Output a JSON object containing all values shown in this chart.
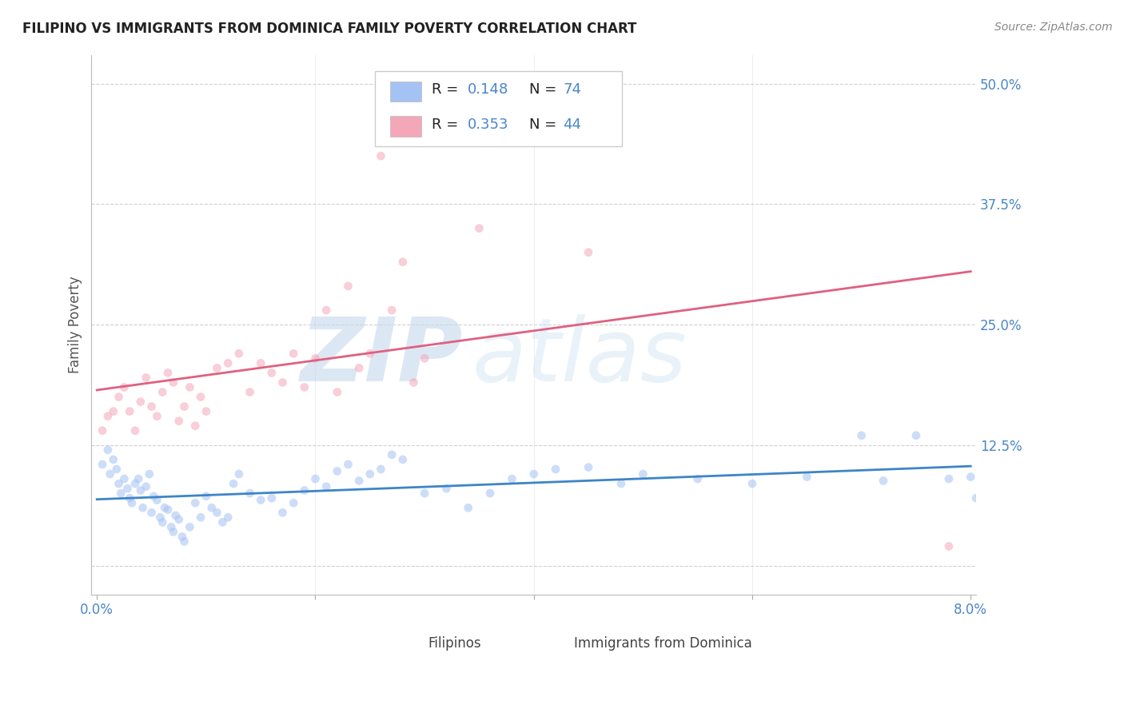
{
  "title": "FILIPINO VS IMMIGRANTS FROM DOMINICA FAMILY POVERTY CORRELATION CHART",
  "source": "Source: ZipAtlas.com",
  "ylabel": "Family Poverty",
  "xlim": [
    0.0,
    8.0
  ],
  "ylim": [
    -3.0,
    53.0
  ],
  "yticks": [
    0,
    12.5,
    25.0,
    37.5,
    50.0
  ],
  "ytick_labels": [
    "",
    "12.5%",
    "25.0%",
    "37.5%",
    "50.0%"
  ],
  "series": [
    {
      "name": "Filipinos",
      "R": 0.148,
      "N": 74,
      "color": "#a4c2f4",
      "line_color": "#3d85c8",
      "x": [
        0.05,
        0.1,
        0.12,
        0.15,
        0.18,
        0.2,
        0.22,
        0.25,
        0.28,
        0.3,
        0.32,
        0.35,
        0.38,
        0.4,
        0.42,
        0.45,
        0.48,
        0.5,
        0.52,
        0.55,
        0.58,
        0.6,
        0.62,
        0.65,
        0.68,
        0.7,
        0.72,
        0.75,
        0.78,
        0.8,
        0.85,
        0.9,
        0.95,
        1.0,
        1.05,
        1.1,
        1.15,
        1.2,
        1.25,
        1.3,
        1.4,
        1.5,
        1.6,
        1.7,
        1.8,
        1.9,
        2.0,
        2.1,
        2.2,
        2.3,
        2.4,
        2.5,
        2.6,
        2.7,
        2.8,
        3.0,
        3.2,
        3.4,
        3.6,
        3.8,
        4.0,
        4.2,
        4.5,
        4.8,
        5.0,
        5.5,
        6.0,
        6.5,
        7.0,
        7.2,
        7.5,
        7.8,
        8.0,
        8.05
      ],
      "y": [
        10.5,
        12.0,
        9.5,
        11.0,
        10.0,
        8.5,
        7.5,
        9.0,
        8.0,
        7.0,
        6.5,
        8.5,
        9.0,
        7.8,
        6.0,
        8.2,
        9.5,
        5.5,
        7.2,
        6.8,
        5.0,
        4.5,
        6.0,
        5.8,
        4.0,
        3.5,
        5.2,
        4.8,
        3.0,
        2.5,
        4.0,
        6.5,
        5.0,
        7.2,
        6.0,
        5.5,
        4.5,
        5.0,
        8.5,
        9.5,
        7.5,
        6.8,
        7.0,
        5.5,
        6.5,
        7.8,
        9.0,
        8.2,
        9.8,
        10.5,
        8.8,
        9.5,
        10.0,
        11.5,
        11.0,
        7.5,
        8.0,
        6.0,
        7.5,
        9.0,
        9.5,
        10.0,
        10.2,
        8.5,
        9.5,
        9.0,
        8.5,
        9.2,
        13.5,
        8.8,
        13.5,
        9.0,
        9.2,
        7.0
      ]
    },
    {
      "name": "Immigrants from Dominica",
      "R": 0.353,
      "N": 44,
      "color": "#f4a7b9",
      "line_color": "#e06080",
      "x": [
        0.05,
        0.1,
        0.15,
        0.2,
        0.25,
        0.3,
        0.35,
        0.4,
        0.45,
        0.5,
        0.55,
        0.6,
        0.65,
        0.7,
        0.75,
        0.8,
        0.85,
        0.9,
        0.95,
        1.0,
        1.1,
        1.2,
        1.3,
        1.4,
        1.5,
        1.6,
        1.7,
        1.8,
        1.9,
        2.0,
        2.1,
        2.2,
        2.3,
        2.4,
        2.5,
        2.6,
        2.7,
        2.8,
        2.9,
        3.0,
        3.5,
        4.0,
        4.5,
        7.8
      ],
      "y": [
        14.0,
        15.5,
        16.0,
        17.5,
        18.5,
        16.0,
        14.0,
        17.0,
        19.5,
        16.5,
        15.5,
        18.0,
        20.0,
        19.0,
        15.0,
        16.5,
        18.5,
        14.5,
        17.5,
        16.0,
        20.5,
        21.0,
        22.0,
        18.0,
        21.0,
        20.0,
        19.0,
        22.0,
        18.5,
        21.5,
        26.5,
        18.0,
        29.0,
        20.5,
        22.0,
        42.5,
        26.5,
        31.5,
        19.0,
        21.5,
        35.0,
        46.0,
        32.5,
        2.0
      ]
    }
  ],
  "background_color": "#ffffff",
  "grid_color": "#cccccc",
  "watermark_zip": "ZIP",
  "watermark_atlas": "atlas",
  "axis_color": "#4a86c8",
  "title_color": "#222222",
  "marker_size": 60,
  "marker_alpha": 0.55
}
